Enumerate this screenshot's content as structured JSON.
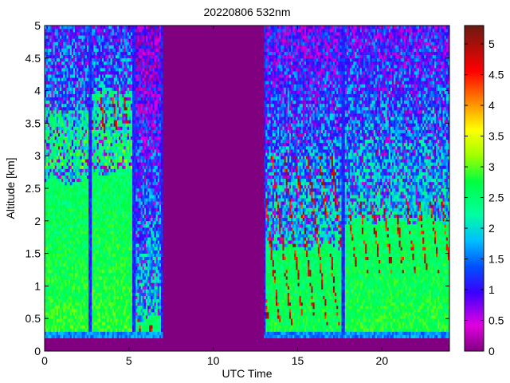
{
  "chart_data": {
    "type": "heatmap",
    "title": "20220806 532nm",
    "xlabel": "UTC Time",
    "ylabel": "Altitude [km]",
    "xlim": [
      0,
      24
    ],
    "ylim": [
      0,
      5
    ],
    "x_ticks": [
      "0",
      "5",
      "10",
      "15",
      "20"
    ],
    "x_tick_values": [
      0,
      5,
      10,
      15,
      20
    ],
    "y_ticks": [
      "0",
      "0.5",
      "1",
      "1.5",
      "2",
      "2.5",
      "3",
      "3.5",
      "4",
      "4.5",
      "5"
    ],
    "y_tick_values": [
      0,
      0.5,
      1,
      1.5,
      2,
      2.5,
      3,
      3.5,
      4,
      4.5,
      5
    ],
    "colorbar": {
      "range": [
        0,
        5.3
      ],
      "ticks": [
        "0",
        "0.5",
        "1",
        "1.5",
        "2",
        "2.5",
        "3",
        "3.5",
        "4",
        "4.5",
        "5"
      ],
      "tick_values": [
        0,
        0.5,
        1,
        1.5,
        2,
        2.5,
        3,
        3.5,
        4,
        4.5,
        5
      ]
    },
    "data_gaps_utc": [
      [
        7.0,
        13.0
      ]
    ],
    "segments": [
      {
        "x": [
          0.0,
          2.7
        ],
        "boundary_layer_top_km": 2.6,
        "aerosol_layer_km": [
          2.8,
          3.7
        ]
      },
      {
        "x": [
          2.7,
          5.3
        ],
        "boundary_layer_top_km": 2.75,
        "aerosol_layer_km": [
          2.8,
          4.0
        ],
        "cloud_km": [
          3.4,
          3.9
        ]
      },
      {
        "x": [
          5.3,
          7.0
        ],
        "boundary_layer_top_km": 0.5,
        "cloud_km": [
          0.3,
          0.5
        ]
      },
      {
        "x": [
          13.0,
          17.7
        ],
        "boundary_layer_top_km": 1.6,
        "cloud_km": [
          0.4,
          3.0
        ]
      },
      {
        "x": [
          17.7,
          24.0
        ],
        "boundary_layer_top_km": 2.0,
        "cloud_km": [
          1.2,
          2.3
        ]
      }
    ]
  }
}
